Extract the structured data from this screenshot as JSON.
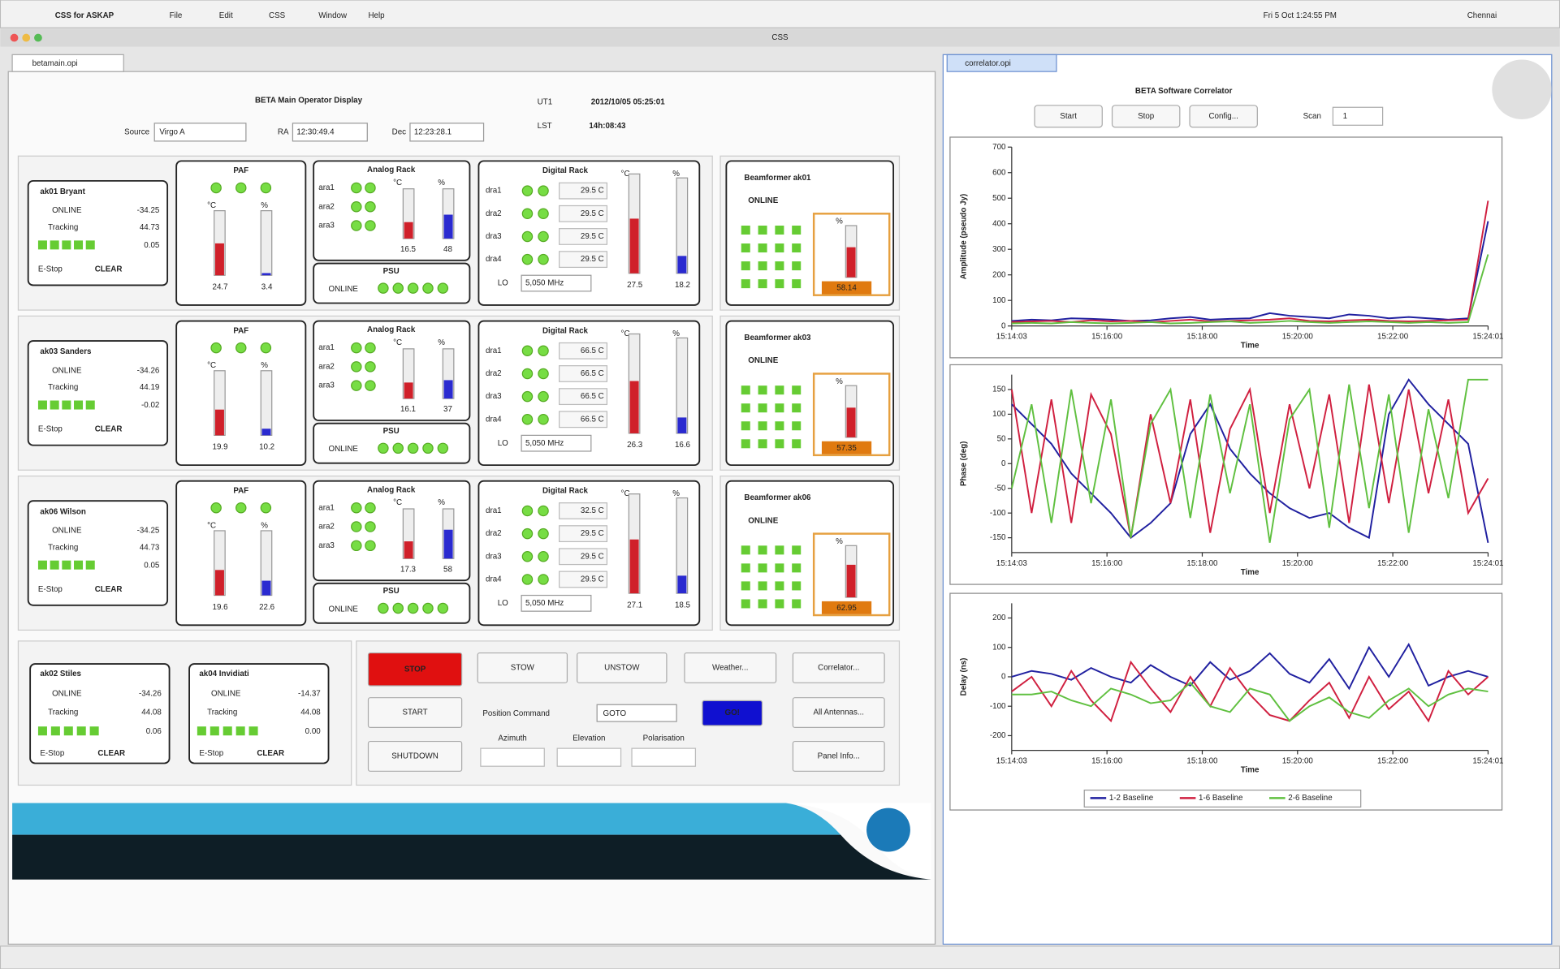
{
  "menu": {
    "app": "CSS for ASKAP",
    "items": [
      "File",
      "Edit",
      "CSS",
      "Window",
      "Help"
    ],
    "clock": "Fri 5 Oct 1:24:55 PM",
    "user": "Chennai",
    "window": "CSS"
  },
  "tabs": {
    "left": "betamain.opi",
    "right": "correlator.opi"
  },
  "display": {
    "title": "BETA Main Operator Display",
    "ut_label": "UT1",
    "ut": "2012/10/05 05:25:01",
    "lst_label": "LST",
    "lst": "14h:08:43",
    "source_label": "Source",
    "source": "Virgo A",
    "ra_label": "RA",
    "ra": "12:30:49.4",
    "dec_label": "Dec",
    "dec": "12:23:28.1"
  },
  "labels": {
    "online": "ONLINE",
    "tracking": "Tracking",
    "estop": "E-Stop",
    "clear": "CLEAR",
    "paf": "PAF",
    "analog": "Analog Rack",
    "digital": "Digital Rack",
    "psu": "PSU",
    "lo": "LO",
    "deg": "°C",
    "pct": "%",
    "analog_rows": [
      "ara1",
      "ara2",
      "ara3"
    ],
    "digital_rows": [
      "dra1",
      "dra2",
      "dra3",
      "dra4"
    ]
  },
  "gauge_ranges": {
    "temp": [
      0,
      50
    ],
    "pct": [
      0,
      100
    ],
    "beamformer": [
      0,
      100
    ]
  },
  "antennas": [
    {
      "name": "ak01 Bryant",
      "online": "-34.25",
      "tracking": "44.73",
      "offset": "0.05",
      "paf": [
        24.7,
        3.4
      ],
      "analog": [
        16.5,
        48
      ],
      "digital": [
        27.5,
        18.2
      ],
      "rack": [
        "29.5 C",
        "29.5 C",
        "29.5 C",
        "29.5 C"
      ],
      "lo": "5,050 MHz",
      "bf_name": "Beamformer ak01",
      "bf_status": "ONLINE",
      "bf": 58.14
    },
    {
      "name": "ak03 Sanders",
      "online": "-34.26",
      "tracking": "44.19",
      "offset": "-0.02",
      "paf": [
        19.9,
        10.2
      ],
      "analog": [
        16.1,
        37
      ],
      "digital": [
        26.3,
        16.6
      ],
      "rack": [
        "66.5 C",
        "66.5 C",
        "66.5 C",
        "66.5 C"
      ],
      "lo": "5,050 MHz",
      "bf_name": "Beamformer ak03",
      "bf_status": "ONLINE",
      "bf": 57.35
    },
    {
      "name": "ak06 Wilson",
      "online": "-34.25",
      "tracking": "44.73",
      "offset": "0.05",
      "paf": [
        19.6,
        22.6
      ],
      "analog": [
        17.3,
        58
      ],
      "digital": [
        27.1,
        18.5
      ],
      "rack": [
        "32.5 C",
        "29.5 C",
        "29.5 C",
        "29.5 C"
      ],
      "lo": "5,050 MHz",
      "bf_name": "Beamformer ak06",
      "bf_status": "ONLINE",
      "bf": 62.95
    }
  ],
  "small_antennas": [
    {
      "name": "ak02 Stiles",
      "online": "-34.26",
      "tracking": "44.08",
      "offset": "0.06",
      "estop": "E-Stop",
      "clear": "CLEAR"
    },
    {
      "name": "ak04 Invidiati",
      "online": "-14.37",
      "tracking": "44.08",
      "offset": "0.00",
      "estop": "E-Stop",
      "clear": "CLEAR"
    }
  ],
  "controls": {
    "stop": "STOP",
    "start": "START",
    "shutdown": "SHUTDOWN",
    "stow": "STOW",
    "unstow": "UNSTOW",
    "weather": "Weather...",
    "correlator": "Correlator...",
    "all": "All Antennas...",
    "panel": "Panel Info...",
    "position": "Position Command",
    "goto": "GOTO",
    "go": "GO!",
    "azimuth": "Azimuth",
    "elevation": "Elevation",
    "polarisation": "Polarisation"
  },
  "correlator": {
    "title": "BETA Software Correlator",
    "buttons": [
      "Start",
      "Stop",
      "Config..."
    ],
    "scan_label": "Scan",
    "scan": "1",
    "legend": [
      "1-2 Baseline",
      "1-6 Baseline",
      "2-6 Baseline"
    ],
    "charts": [
      {
        "type": "line",
        "ylabel": "Amplitude (pseudo Jy)",
        "xlabel": "Time",
        "ylim": [
          0,
          700
        ],
        "yticks": [
          0,
          100,
          200,
          300,
          400,
          500,
          600,
          700
        ],
        "xticks": [
          "15:14:03",
          "15:16:00",
          "15:18:00",
          "15:20:00",
          "15:22:00",
          "15:24:01"
        ],
        "series": [
          {
            "name": "1-2 Baseline",
            "color": "#2020a0",
            "values": [
              20,
              25,
              22,
              30,
              28,
              25,
              20,
              22,
              30,
              35,
              25,
              28,
              30,
              50,
              40,
              35,
              30,
              45,
              40,
              30,
              35,
              30,
              25,
              30,
              410
            ]
          },
          {
            "name": "1-6 Baseline",
            "color": "#d02040",
            "values": [
              15,
              18,
              20,
              15,
              22,
              18,
              20,
              15,
              20,
              25,
              18,
              20,
              22,
              25,
              30,
              20,
              18,
              22,
              25,
              20,
              18,
              20,
              22,
              25,
              490
            ]
          },
          {
            "name": "2-6 Baseline",
            "color": "#60c040",
            "values": [
              10,
              12,
              10,
              15,
              12,
              10,
              12,
              15,
              10,
              12,
              15,
              18,
              12,
              15,
              20,
              15,
              12,
              15,
              18,
              15,
              12,
              15,
              12,
              15,
              280
            ]
          }
        ]
      },
      {
        "type": "line",
        "ylabel": "Phase (deg)",
        "xlabel": "Time",
        "ylim": [
          -180,
          180
        ],
        "yticks": [
          -150,
          -100,
          -50,
          0,
          50,
          100,
          150
        ],
        "xticks": [
          "15:14:03",
          "15:16:00",
          "15:18:00",
          "15:20:00",
          "15:22:00",
          "15:24:01"
        ],
        "series": [
          {
            "name": "1-2 Baseline",
            "color": "#2020a0",
            "values": [
              120,
              80,
              40,
              -20,
              -60,
              -100,
              -150,
              -120,
              -80,
              60,
              120,
              30,
              -20,
              -60,
              -90,
              -110,
              -100,
              -130,
              -150,
              100,
              170,
              120,
              80,
              40,
              -160
            ]
          },
          {
            "name": "1-6 Baseline",
            "color": "#d02040",
            "values": [
              150,
              -100,
              130,
              -120,
              140,
              60,
              -150,
              100,
              -80,
              130,
              -140,
              70,
              150,
              -100,
              120,
              -50,
              140,
              -120,
              160,
              -80,
              150,
              -60,
              130,
              -100,
              -30
            ]
          },
          {
            "name": "2-6 Baseline",
            "color": "#60c040",
            "values": [
              -50,
              120,
              -120,
              150,
              -80,
              130,
              -150,
              80,
              150,
              -110,
              140,
              -60,
              120,
              -160,
              90,
              150,
              -130,
              160,
              -90,
              140,
              -140,
              110,
              -70,
              170,
              170
            ]
          }
        ]
      },
      {
        "type": "line",
        "ylabel": "Delay (ns)",
        "xlabel": "Time",
        "ylim": [
          -250,
          250
        ],
        "yticks": [
          -200,
          -100,
          0,
          100,
          200
        ],
        "xticks": [
          "15:14:03",
          "15:16:00",
          "15:18:00",
          "15:20:00",
          "15:22:00",
          "15:24:01"
        ],
        "series": [
          {
            "name": "1-2 Baseline",
            "color": "#2020a0",
            "values": [
              0,
              20,
              10,
              -10,
              30,
              0,
              -20,
              40,
              0,
              -30,
              50,
              -10,
              20,
              80,
              10,
              -20,
              60,
              -40,
              100,
              0,
              110,
              -30,
              0,
              20,
              0
            ]
          },
          {
            "name": "1-6 Baseline",
            "color": "#d02040",
            "values": [
              -50,
              0,
              -100,
              20,
              -80,
              -150,
              50,
              -40,
              -120,
              0,
              -100,
              30,
              -60,
              -130,
              -150,
              -80,
              -20,
              -140,
              0,
              -110,
              -50,
              -150,
              20,
              -60,
              0
            ]
          },
          {
            "name": "2-6 Baseline",
            "color": "#60c040",
            "values": [
              -60,
              -60,
              -50,
              -80,
              -100,
              -40,
              -60,
              -90,
              -80,
              -20,
              -100,
              -120,
              -40,
              -60,
              -150,
              -100,
              -70,
              -120,
              -140,
              -80,
              -40,
              -100,
              -60,
              -40,
              -50
            ]
          }
        ]
      }
    ]
  }
}
